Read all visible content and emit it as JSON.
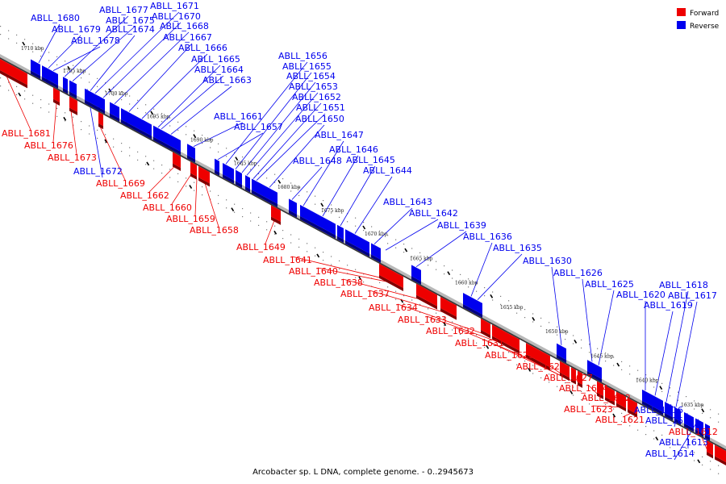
{
  "caption": "Arcobacter sp. L DNA, complete genome. - 0..2945673",
  "legend": [
    {
      "label": "Forward",
      "color": "#ee0000"
    },
    {
      "label": "Reverse",
      "color": "#0000ee"
    }
  ],
  "colors": {
    "forward": "#ee0000",
    "reverse": "#0000ee",
    "backbone": "#888888"
  },
  "kbp_ticks": [
    "1710 kbp",
    "1705 kbp",
    "1700 kbp",
    "1695 kbp",
    "1690 kbp",
    "1685 kbp",
    "1680 kbp",
    "1675 kbp",
    "1670 kbp",
    "1665 kbp",
    "1660 kbp",
    "1655 kbp",
    "1650 kbp",
    "1645 kbp",
    "1640 kbp",
    "1635 kbp"
  ],
  "reverse_genes": [
    "ABLL_1680",
    "ABLL_1679",
    "ABLL_1678",
    "ABLL_1677",
    "ABLL_1675",
    "ABLL_1674",
    "ABLL_1671",
    "ABLL_1670",
    "ABLL_1668",
    "ABLL_1667",
    "ABLL_1666",
    "ABLL_1665",
    "ABLL_1664",
    "ABLL_1663",
    "ABLL_1672",
    "ABLL_1661",
    "ABLL_1657",
    "ABLL_1656",
    "ABLL_1655",
    "ABLL_1654",
    "ABLL_1653",
    "ABLL_1652",
    "ABLL_1651",
    "ABLL_1650",
    "ABLL_1648",
    "ABLL_1647",
    "ABLL_1646",
    "ABLL_1645",
    "ABLL_1644",
    "ABLL_1643",
    "ABLL_1642",
    "ABLL_1639",
    "ABLL_1636",
    "ABLL_1635",
    "ABLL_1630",
    "ABLL_1626",
    "ABLL_1625",
    "ABLL_1620",
    "ABLL_1619",
    "ABLL_1618",
    "ABLL_1617",
    "ABLL_1616",
    "ABLL_1615",
    "ABLL_1613",
    "ABLL_1614"
  ],
  "forward_genes": [
    "ABLL_1681",
    "ABLL_1676",
    "ABLL_1673",
    "ABLL_1669",
    "ABLL_1662",
    "ABLL_1660",
    "ABLL_1659",
    "ABLL_1658",
    "ABLL_1649",
    "ABLL_1641",
    "ABLL_1640",
    "ABLL_1638",
    "ABLL_1637",
    "ABLL_1634",
    "ABLL_1633",
    "ABLL_1632",
    "ABLL_1631",
    "ABLL_1629",
    "ABLL_1628",
    "ABLL_1627",
    "ABLL_1624",
    "ABLL_1622",
    "ABLL_1623",
    "ABLL_1621",
    "ABLL_1612"
  ]
}
